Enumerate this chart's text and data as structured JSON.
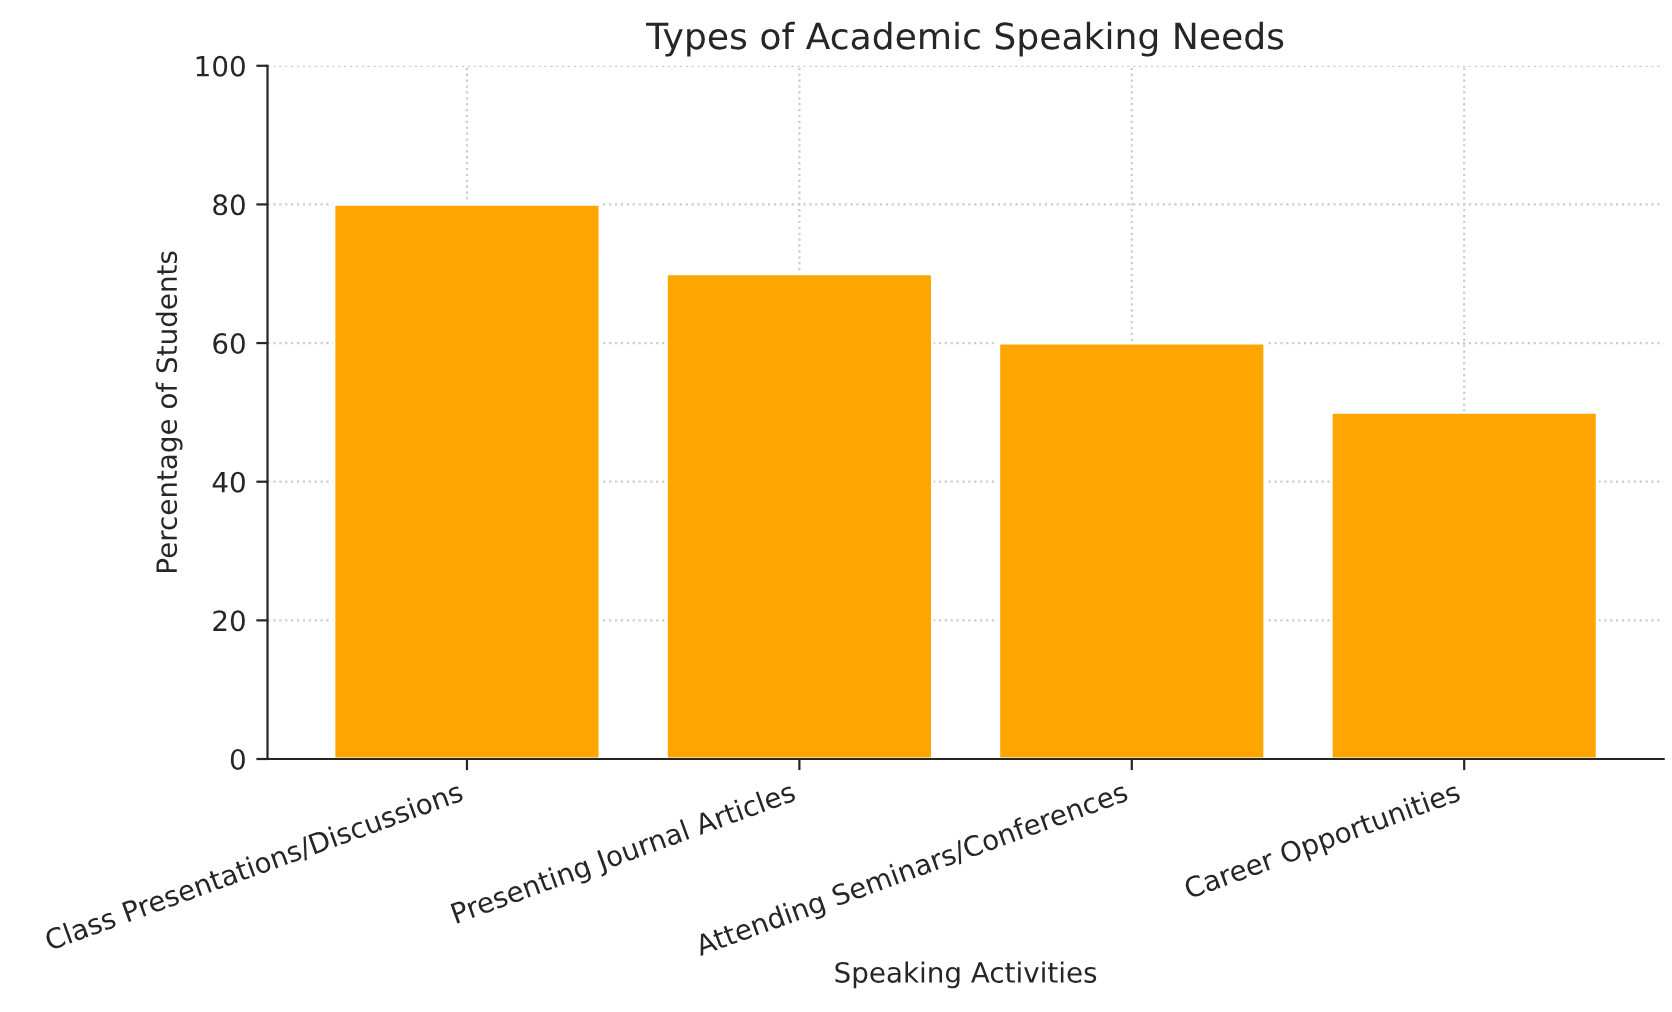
{
  "chart_data": {
    "type": "bar",
    "title": "Types of Academic Speaking Needs",
    "xlabel": "Speaking Activities",
    "ylabel": "Percentage of Students",
    "categories": [
      "Class Presentations/Discussions",
      "Presenting Journal Articles",
      "Attending Seminars/Conferences",
      "Career Opportunities"
    ],
    "values": [
      80,
      70,
      60,
      50
    ],
    "color": "#ffa500",
    "ylim": [
      0,
      100
    ],
    "yticks": [
      0,
      20,
      40,
      60,
      80,
      100
    ],
    "grid": true
  }
}
